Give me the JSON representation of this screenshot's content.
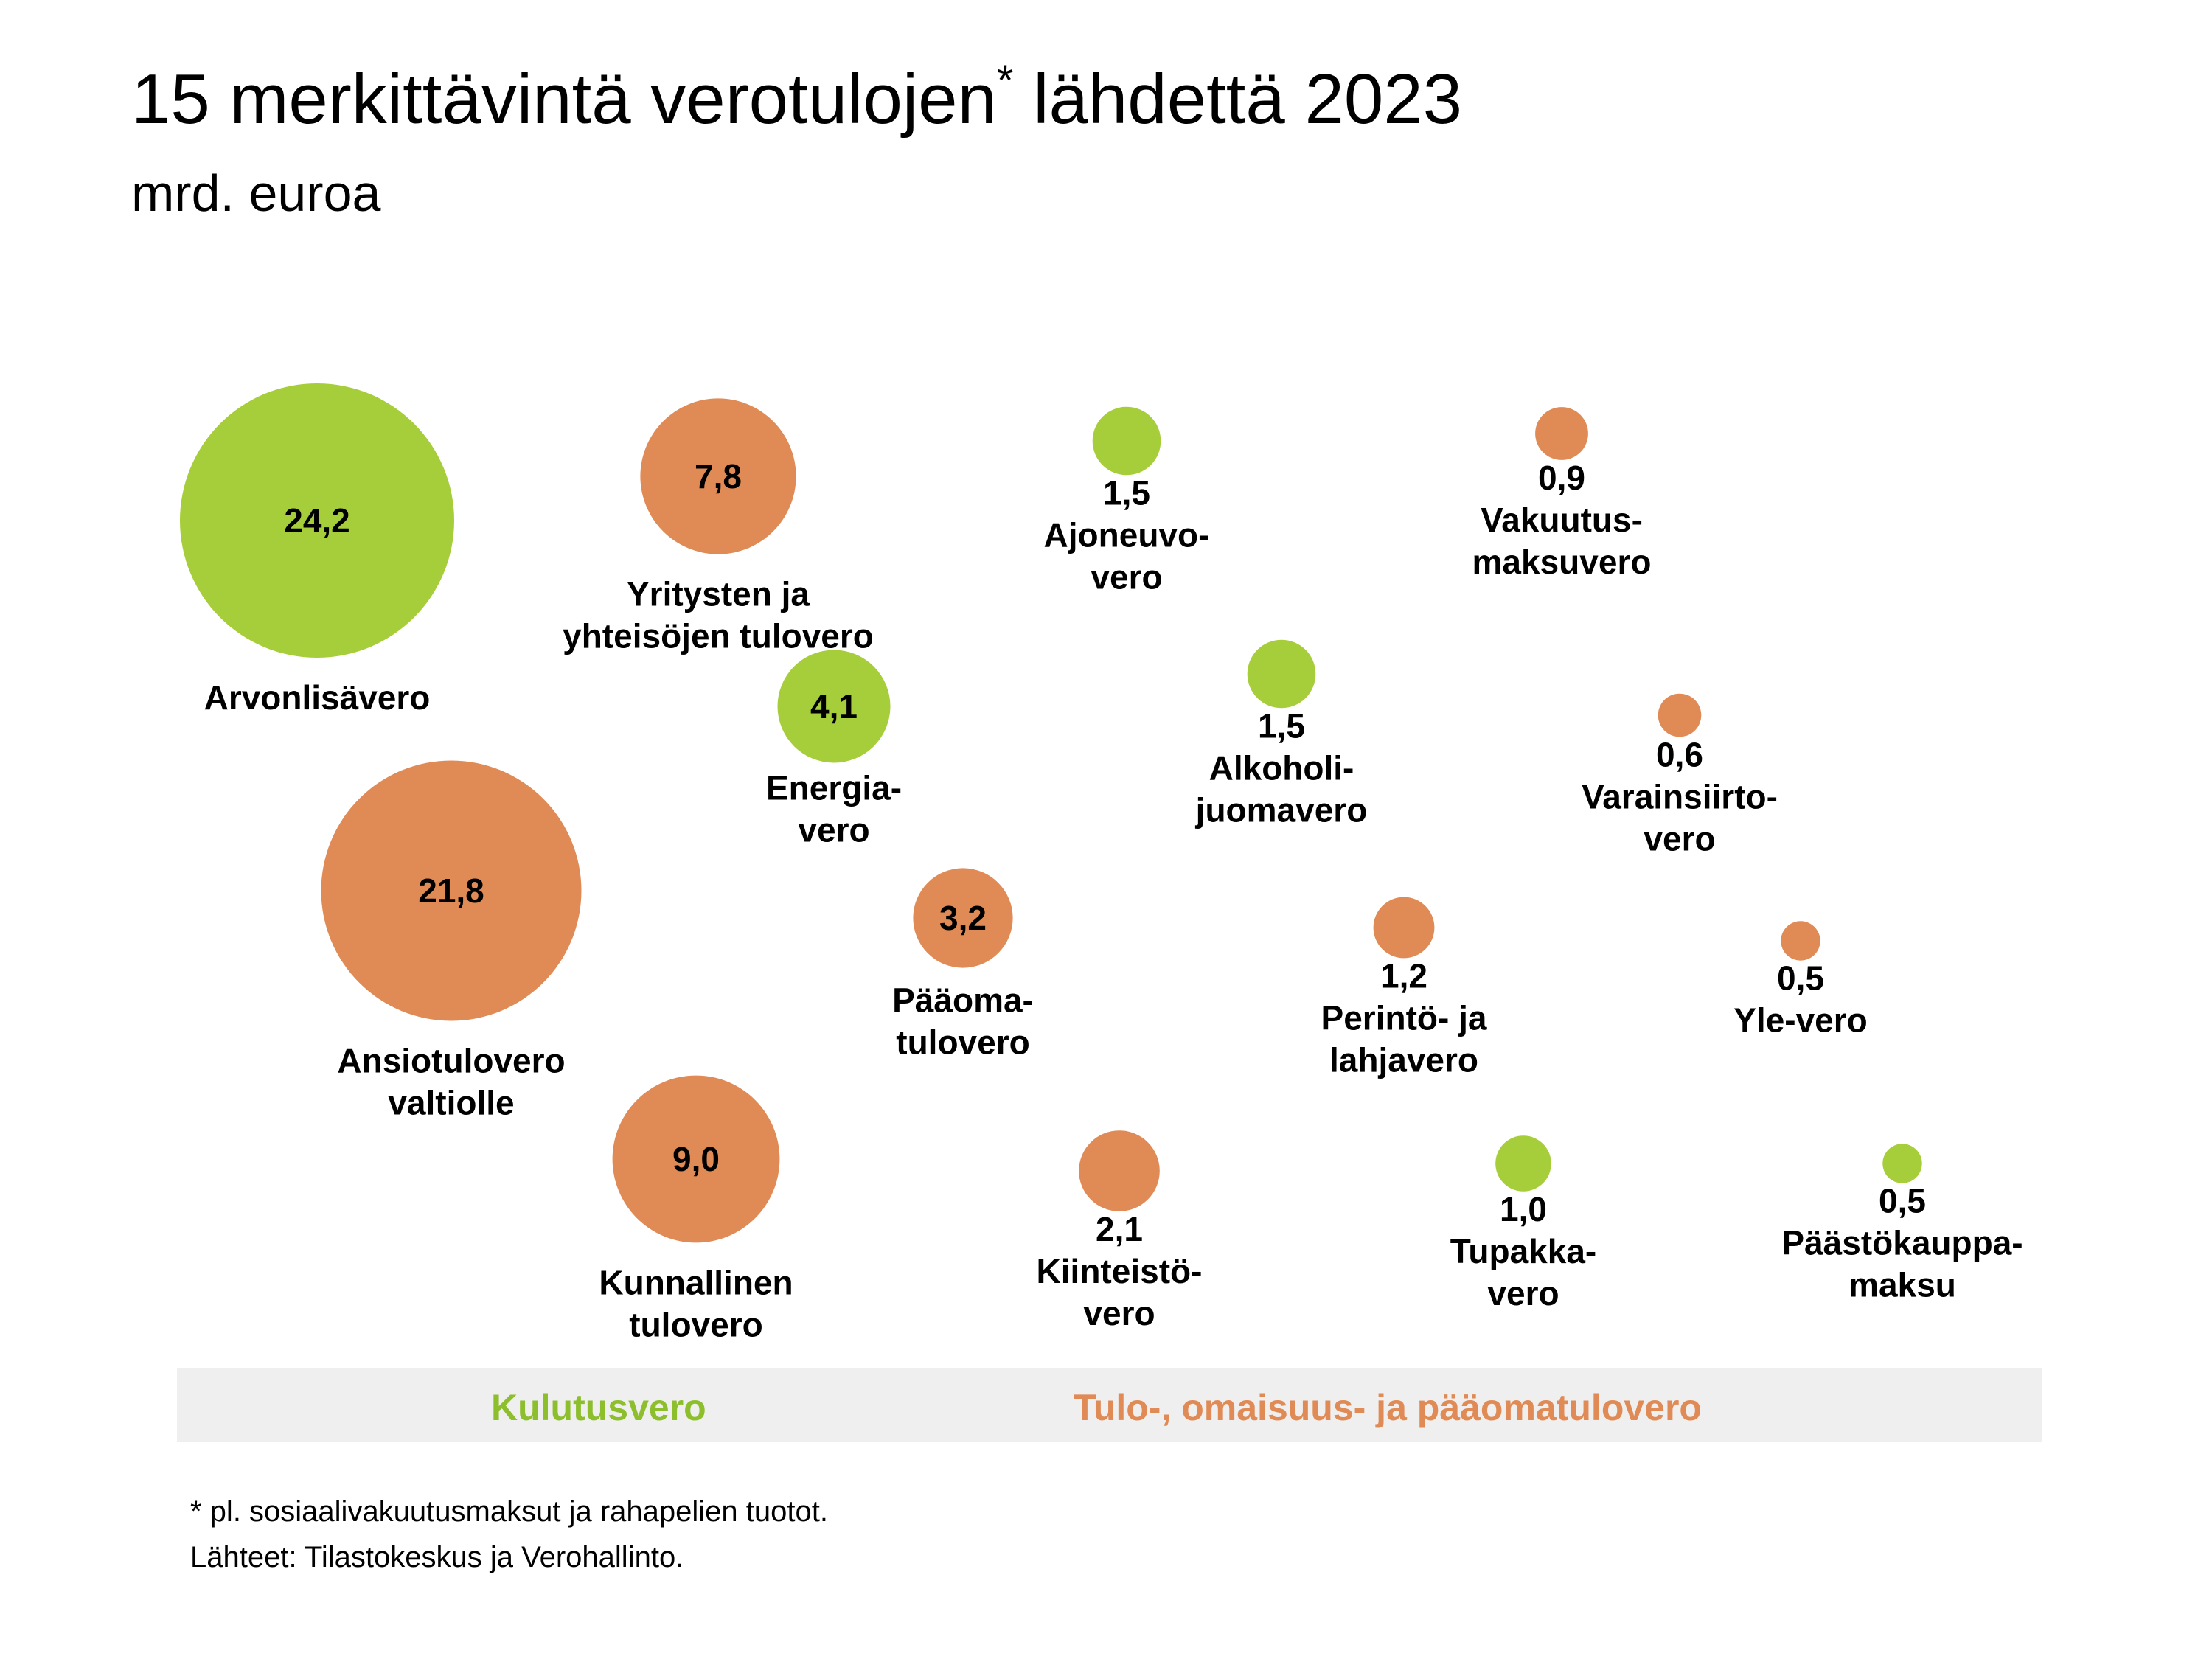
{
  "title": {
    "main": "15 merkittävintä verotulojen",
    "marker": "*",
    "rest": " lähdettä 2023",
    "unit": "mrd. euroa"
  },
  "colors": {
    "consumption": "#a6cd3a",
    "income": "#e08a55",
    "legend_consumption_text": "#8dbe2c",
    "legend_income_text": "#e08a55",
    "legend_bar": "#efefef"
  },
  "chart_data": {
    "type": "bubble",
    "unit": "mrd. euroa",
    "items": [
      {
        "value": 24.2,
        "value_label": "24,2",
        "label_lines": [
          "Arvonlisävero"
        ],
        "category": "Kulutusvero"
      },
      {
        "value": 21.8,
        "value_label": "21,8",
        "label_lines": [
          "Ansiotulovero",
          "valtiolle"
        ],
        "category": "Tulo-, omaisuus- ja pääomatulovero"
      },
      {
        "value": 9.0,
        "value_label": "9,0",
        "label_lines": [
          "Kunnallinen",
          "tulovero"
        ],
        "category": "Tulo-, omaisuus- ja pääomatulovero"
      },
      {
        "value": 7.8,
        "value_label": "7,8",
        "label_lines": [
          "Yritysten ja",
          "yhteisöjen tulovero"
        ],
        "category": "Tulo-, omaisuus- ja pääomatulovero"
      },
      {
        "value": 4.1,
        "value_label": "4,1",
        "label_lines": [
          "Energia-",
          "vero"
        ],
        "category": "Kulutusvero"
      },
      {
        "value": 3.2,
        "value_label": "3,2",
        "label_lines": [
          "Pääoma-",
          "tulovero"
        ],
        "category": "Tulo-, omaisuus- ja pääomatulovero"
      },
      {
        "value": 1.5,
        "value_label": "1,5",
        "label_lines": [
          "Ajoneuvo-",
          "vero"
        ],
        "category": "Kulutusvero"
      },
      {
        "value": 1.5,
        "value_label": "1,5",
        "label_lines": [
          "Alkoholi-",
          "juomavero"
        ],
        "category": "Kulutusvero"
      },
      {
        "value": 2.1,
        "value_label": "2,1",
        "label_lines": [
          "Kiinteistö-",
          "vero"
        ],
        "category": "Tulo-, omaisuus- ja pääomatulovero"
      },
      {
        "value": 0.9,
        "value_label": "0,9",
        "label_lines": [
          "Vakuutus-",
          "maksuvero"
        ],
        "category": "Tulo-, omaisuus- ja pääomatulovero"
      },
      {
        "value": 0.6,
        "value_label": "0,6",
        "label_lines": [
          "Varainsiirto-",
          "vero"
        ],
        "category": "Tulo-, omaisuus- ja pääomatulovero"
      },
      {
        "value": 1.2,
        "value_label": "1,2",
        "label_lines": [
          "Perintö- ja",
          "lahjavero"
        ],
        "category": "Tulo-, omaisuus- ja pääomatulovero"
      },
      {
        "value": 0.5,
        "value_label": "0,5",
        "label_lines": [
          "Yle-vero"
        ],
        "category": "Tulo-, omaisuus- ja pääomatulovero"
      },
      {
        "value": 1.0,
        "value_label": "1,0",
        "label_lines": [
          "Tupakka-",
          "vero"
        ],
        "category": "Kulutusvero"
      },
      {
        "value": 0.5,
        "value_label": "0,5",
        "label_lines": [
          "Päästökauppa-",
          "maksu"
        ],
        "category": "Kulutusvero"
      }
    ]
  },
  "legend": {
    "consumption": "Kulutusvero",
    "income": "Tulo-, omaisuus- ja pääomatulovero"
  },
  "footnotes": [
    "* pl. sosiaalivakuutusmaksut ja rahapelien tuotot.",
    "Lähteet: Tilastokeskus ja Verohallinto."
  ]
}
